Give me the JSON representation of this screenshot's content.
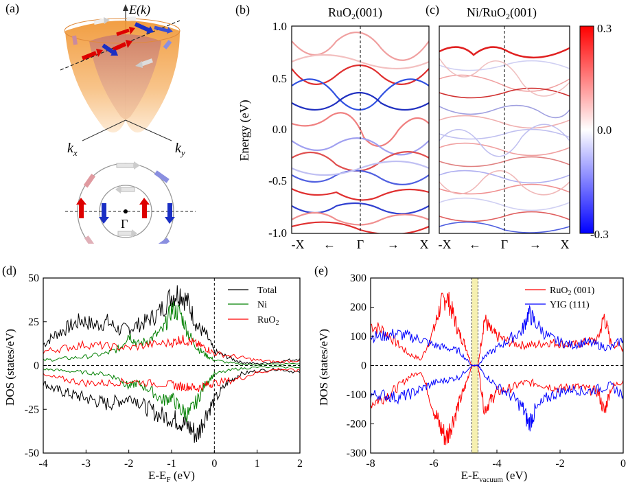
{
  "panel_labels": {
    "a": "(a)",
    "b": "(b)",
    "c": "(c)",
    "d": "(d)",
    "e": "(e)"
  },
  "panel_a": {
    "energy_axis_label": "E(k)",
    "kx_label": "k",
    "kx_sub": "x",
    "ky_label": "k",
    "ky_sub": "y",
    "gamma_label": "Γ"
  },
  "chart_data": [
    {
      "id": "b",
      "type": "heatmap",
      "title": "RuO2(001)",
      "title_main": "RuO",
      "title_sub": "2",
      "title_tail": "(001)",
      "ylabel": "Energy (eV)",
      "ylim": [
        -1.0,
        1.0
      ],
      "yticks": [
        "1.0",
        "0.5",
        "0.0",
        "-0.5",
        "-1.0"
      ],
      "xticks": [
        "-X",
        "←",
        "Γ",
        "→",
        "X"
      ]
    },
    {
      "id": "c",
      "type": "heatmap",
      "title": "Ni/RuO2(001)",
      "title_main": "Ni/RuO",
      "title_sub": "2",
      "title_tail": "(001)",
      "ylim": [
        -1.0,
        1.0
      ],
      "xticks": [
        "-X",
        "←",
        "Γ",
        "→",
        "X"
      ],
      "colorbar": {
        "range": [
          -0.3,
          0.3
        ],
        "ticks": [
          "0.3",
          "0.0",
          "-0.3"
        ],
        "colors": [
          "#0000ff",
          "#ffffff",
          "#ff0000"
        ]
      }
    },
    {
      "id": "d",
      "type": "line",
      "xlabel": "E-E",
      "xlabel_sub": "F",
      "xlabel_tail": " (eV)",
      "ylabel": "DOS (states/eV)",
      "xlim": [
        -4,
        2
      ],
      "ylim": [
        -50,
        50
      ],
      "xticks": [
        -4,
        -3,
        -2,
        -1,
        0,
        1,
        2
      ],
      "yticks": [
        50,
        25,
        0,
        -25,
        -50
      ],
      "legend_position": "top-right",
      "series": [
        {
          "name": "Total",
          "color": "#000000",
          "up": [
            [
              -4,
              12
            ],
            [
              -3.7,
              18
            ],
            [
              -3.4,
              22
            ],
            [
              -3.1,
              26
            ],
            [
              -2.8,
              23
            ],
            [
              -2.5,
              25
            ],
            [
              -2.2,
              20
            ],
            [
              -1.9,
              22
            ],
            [
              -1.6,
              25
            ],
            [
              -1.3,
              30
            ],
            [
              -1.0,
              40
            ],
            [
              -0.8,
              42
            ],
            [
              -0.6,
              35
            ],
            [
              -0.4,
              22
            ],
            [
              -0.2,
              18
            ],
            [
              0,
              8
            ],
            [
              0.3,
              5
            ],
            [
              0.6,
              2
            ],
            [
              1.0,
              1
            ],
            [
              1.5,
              2
            ],
            [
              2,
              4
            ]
          ],
          "down": [
            [
              -4,
              -10
            ],
            [
              -3.7,
              -14
            ],
            [
              -3.4,
              -16
            ],
            [
              -3.1,
              -18
            ],
            [
              -2.8,
              -20
            ],
            [
              -2.5,
              -22
            ],
            [
              -2.2,
              -20
            ],
            [
              -1.9,
              -18
            ],
            [
              -1.6,
              -24
            ],
            [
              -1.3,
              -28
            ],
            [
              -1.0,
              -30
            ],
            [
              -0.8,
              -32
            ],
            [
              -0.6,
              -35
            ],
            [
              -0.4,
              -40
            ],
            [
              -0.2,
              -28
            ],
            [
              0,
              -20
            ],
            [
              0.3,
              -10
            ],
            [
              0.6,
              -5
            ],
            [
              1.0,
              -3
            ],
            [
              1.5,
              -2
            ],
            [
              2,
              -4
            ]
          ]
        },
        {
          "name": "Ni",
          "color": "#008000",
          "up": [
            [
              -4,
              3
            ],
            [
              -3.5,
              4
            ],
            [
              -3,
              5
            ],
            [
              -2.5,
              7
            ],
            [
              -2.2,
              10
            ],
            [
              -2.0,
              18
            ],
            [
              -1.8,
              12
            ],
            [
              -1.5,
              15
            ],
            [
              -1.2,
              20
            ],
            [
              -1.0,
              32
            ],
            [
              -0.8,
              30
            ],
            [
              -0.6,
              18
            ],
            [
              -0.4,
              10
            ],
            [
              -0.2,
              6
            ],
            [
              0,
              3
            ],
            [
              0.5,
              1
            ],
            [
              1,
              0.5
            ],
            [
              2,
              1
            ]
          ],
          "down": [
            [
              -4,
              -2
            ],
            [
              -3.5,
              -3
            ],
            [
              -3,
              -4
            ],
            [
              -2.5,
              -5
            ],
            [
              -2.2,
              -8
            ],
            [
              -2.0,
              -12
            ],
            [
              -1.8,
              -10
            ],
            [
              -1.5,
              -14
            ],
            [
              -1.2,
              -20
            ],
            [
              -1.0,
              -18
            ],
            [
              -0.8,
              -25
            ],
            [
              -0.6,
              -28
            ],
            [
              -0.4,
              -20
            ],
            [
              -0.2,
              -10
            ],
            [
              0,
              -5
            ],
            [
              0.5,
              -2
            ],
            [
              1,
              -1
            ],
            [
              2,
              -1
            ]
          ]
        },
        {
          "name": "RuO2",
          "label_main": "RuO",
          "label_sub": "2",
          "color": "#ff0000",
          "up": [
            [
              -4,
              8
            ],
            [
              -3.5,
              10
            ],
            [
              -3,
              12
            ],
            [
              -2.5,
              11
            ],
            [
              -2,
              10
            ],
            [
              -1.5,
              12
            ],
            [
              -1,
              13
            ],
            [
              -0.8,
              15
            ],
            [
              -0.6,
              14
            ],
            [
              -0.4,
              12
            ],
            [
              -0.2,
              10
            ],
            [
              0,
              7
            ],
            [
              0.5,
              5
            ],
            [
              1,
              3
            ],
            [
              1.5,
              2
            ],
            [
              2,
              3
            ]
          ],
          "down": [
            [
              -4,
              -6
            ],
            [
              -3.5,
              -8
            ],
            [
              -3,
              -10
            ],
            [
              -2.5,
              -10
            ],
            [
              -2,
              -9
            ],
            [
              -1.5,
              -10
            ],
            [
              -1,
              -11
            ],
            [
              -0.8,
              -12
            ],
            [
              -0.6,
              -12
            ],
            [
              -0.4,
              -13
            ],
            [
              -0.2,
              -11
            ],
            [
              0,
              -10
            ],
            [
              0.5,
              -8
            ],
            [
              1,
              -4
            ],
            [
              1.5,
              -2
            ],
            [
              2,
              -3
            ]
          ]
        }
      ]
    },
    {
      "id": "e",
      "type": "line",
      "xlabel": "E-E",
      "xlabel_sub": "vacuum",
      "xlabel_tail": " (eV)",
      "ylabel": "DOS (states/eV)",
      "xlim": [
        -8,
        0
      ],
      "ylim": [
        -300,
        300
      ],
      "xticks": [
        -8,
        -6,
        -4,
        -2,
        0
      ],
      "yticks": [
        300,
        200,
        100,
        0,
        -100,
        -200,
        -300
      ],
      "legend_position": "top-right",
      "highlight_band": [
        -4.8,
        -4.6
      ],
      "series": [
        {
          "name": "RuO2 (001)",
          "label_main": "RuO",
          "label_sub": "2",
          "label_tail": " (001)",
          "color": "#ff0000",
          "up": [
            [
              -8,
              140
            ],
            [
              -7.6,
              120
            ],
            [
              -7.2,
              80
            ],
            [
              -6.8,
              40
            ],
            [
              -6.4,
              20
            ],
            [
              -6.0,
              120
            ],
            [
              -5.8,
              200
            ],
            [
              -5.6,
              240
            ],
            [
              -5.4,
              180
            ],
            [
              -5.2,
              110
            ],
            [
              -5.0,
              70
            ],
            [
              -4.8,
              0
            ],
            [
              -4.6,
              0
            ],
            [
              -4.4,
              160
            ],
            [
              -4.2,
              120
            ],
            [
              -4.0,
              100
            ],
            [
              -3.6,
              80
            ],
            [
              -3.2,
              70
            ],
            [
              -2.8,
              70
            ],
            [
              -2.4,
              80
            ],
            [
              -2.0,
              75
            ],
            [
              -1.6,
              70
            ],
            [
              -1.2,
              80
            ],
            [
              -0.8,
              90
            ],
            [
              -0.6,
              170
            ],
            [
              -0.4,
              80
            ],
            [
              0,
              60
            ]
          ],
          "down": [
            [
              -8,
              -130
            ],
            [
              -7.6,
              -110
            ],
            [
              -7.2,
              -80
            ],
            [
              -6.8,
              -40
            ],
            [
              -6.4,
              -20
            ],
            [
              -6.0,
              -150
            ],
            [
              -5.8,
              -210
            ],
            [
              -5.6,
              -250
            ],
            [
              -5.4,
              -190
            ],
            [
              -5.2,
              -130
            ],
            [
              -5.0,
              -70
            ],
            [
              -4.8,
              0
            ],
            [
              -4.6,
              0
            ],
            [
              -4.4,
              -150
            ],
            [
              -4.2,
              -120
            ],
            [
              -4.0,
              -90
            ],
            [
              -3.6,
              -80
            ],
            [
              -3.2,
              -60
            ],
            [
              -2.8,
              -60
            ],
            [
              -2.4,
              -70
            ],
            [
              -2.0,
              -80
            ],
            [
              -1.6,
              -70
            ],
            [
              -1.2,
              -80
            ],
            [
              -0.8,
              -90
            ],
            [
              -0.6,
              -160
            ],
            [
              -0.4,
              -80
            ],
            [
              0,
              -50
            ]
          ]
        },
        {
          "name": "YIG (111)",
          "color": "#0000ff",
          "up": [
            [
              -8,
              100
            ],
            [
              -7.6,
              100
            ],
            [
              -7.2,
              110
            ],
            [
              -6.8,
              100
            ],
            [
              -6.4,
              90
            ],
            [
              -6.0,
              70
            ],
            [
              -5.6,
              60
            ],
            [
              -5.2,
              50
            ],
            [
              -4.8,
              0
            ],
            [
              -4.6,
              0
            ],
            [
              -4.4,
              30
            ],
            [
              -4.0,
              60
            ],
            [
              -3.6,
              90
            ],
            [
              -3.2,
              120
            ],
            [
              -3.0,
              180
            ],
            [
              -2.8,
              150
            ],
            [
              -2.4,
              100
            ],
            [
              -2.0,
              80
            ],
            [
              -1.6,
              70
            ],
            [
              -1.2,
              80
            ],
            [
              -0.8,
              70
            ],
            [
              -0.4,
              60
            ],
            [
              0,
              90
            ]
          ],
          "down": [
            [
              -8,
              -100
            ],
            [
              -7.6,
              -100
            ],
            [
              -7.2,
              -110
            ],
            [
              -6.8,
              -100
            ],
            [
              -6.4,
              -80
            ],
            [
              -6.0,
              -60
            ],
            [
              -5.6,
              -50
            ],
            [
              -5.2,
              -40
            ],
            [
              -4.8,
              0
            ],
            [
              -4.6,
              0
            ],
            [
              -4.4,
              -30
            ],
            [
              -4.0,
              -70
            ],
            [
              -3.6,
              -100
            ],
            [
              -3.2,
              -140
            ],
            [
              -3.0,
              -200
            ],
            [
              -2.8,
              -160
            ],
            [
              -2.4,
              -110
            ],
            [
              -2.0,
              -90
            ],
            [
              -1.6,
              -80
            ],
            [
              -1.2,
              -90
            ],
            [
              -0.8,
              -80
            ],
            [
              -0.4,
              -70
            ],
            [
              0,
              -100
            ]
          ]
        }
      ]
    }
  ]
}
